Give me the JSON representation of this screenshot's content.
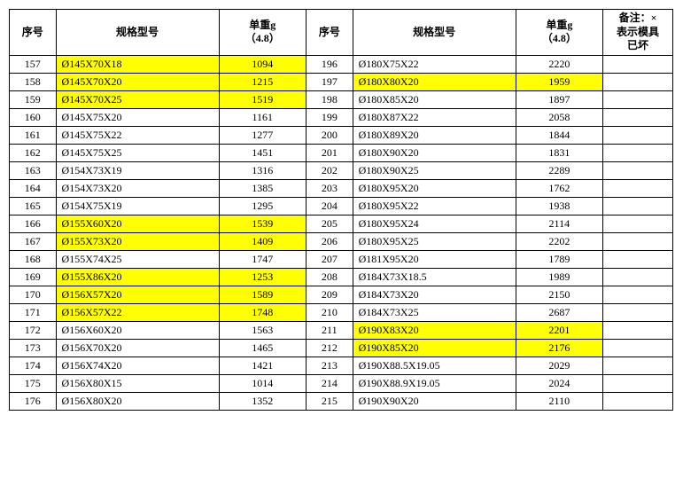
{
  "headers": {
    "seq": "序号",
    "spec": "规格型号",
    "weight_l1": "单重g",
    "weight_l2": "（4.8）",
    "note_l1": "备注：×",
    "note_l2": "表示模具",
    "note_l3": "已坏"
  },
  "left": [
    {
      "seq": "157",
      "spec": "Ø145X70X18",
      "weight": "1094",
      "hl": true
    },
    {
      "seq": "158",
      "spec": "Ø145X70X20",
      "weight": "1215",
      "hl": true
    },
    {
      "seq": "159",
      "spec": "Ø145X70X25",
      "weight": "1519",
      "hl": true
    },
    {
      "seq": "160",
      "spec": "Ø145X75X20",
      "weight": "1161",
      "hl": false
    },
    {
      "seq": "161",
      "spec": "Ø145X75X22",
      "weight": "1277",
      "hl": false
    },
    {
      "seq": "162",
      "spec": "Ø145X75X25",
      "weight": "1451",
      "hl": false
    },
    {
      "seq": "163",
      "spec": "Ø154X73X19",
      "weight": "1316",
      "hl": false
    },
    {
      "seq": "164",
      "spec": "Ø154X73X20",
      "weight": "1385",
      "hl": false
    },
    {
      "seq": "165",
      "spec": "Ø154X75X19",
      "weight": "1295",
      "hl": false
    },
    {
      "seq": "166",
      "spec": "Ø155X60X20",
      "weight": "1539",
      "hl": true
    },
    {
      "seq": "167",
      "spec": "Ø155X73X20",
      "weight": "1409",
      "hl": true
    },
    {
      "seq": "168",
      "spec": "Ø155X74X25",
      "weight": "1747",
      "hl": false
    },
    {
      "seq": "169",
      "spec": "Ø155X86X20",
      "weight": "1253",
      "hl": true
    },
    {
      "seq": "170",
      "spec": "Ø156X57X20",
      "weight": "1589",
      "hl": true
    },
    {
      "seq": "171",
      "spec": "Ø156X57X22",
      "weight": "1748",
      "hl": true
    },
    {
      "seq": "172",
      "spec": "Ø156X60X20",
      "weight": "1563",
      "hl": false
    },
    {
      "seq": "173",
      "spec": "Ø156X70X20",
      "weight": "1465",
      "hl": false
    },
    {
      "seq": "174",
      "spec": "Ø156X74X20",
      "weight": "1421",
      "hl": false
    },
    {
      "seq": "175",
      "spec": "Ø156X80X15",
      "weight": "1014",
      "hl": false
    },
    {
      "seq": "176",
      "spec": "Ø156X80X20",
      "weight": "1352",
      "hl": false
    }
  ],
  "right": [
    {
      "seq": "196",
      "spec": "Ø180X75X22",
      "weight": "2220",
      "hl": false
    },
    {
      "seq": "197",
      "spec": "Ø180X80X20",
      "weight": "1959",
      "hl": true
    },
    {
      "seq": "198",
      "spec": "Ø180X85X20",
      "weight": "1897",
      "hl": false
    },
    {
      "seq": "199",
      "spec": "Ø180X87X22",
      "weight": "2058",
      "hl": false
    },
    {
      "seq": "200",
      "spec": "Ø180X89X20",
      "weight": "1844",
      "hl": false
    },
    {
      "seq": "201",
      "spec": "Ø180X90X20",
      "weight": "1831",
      "hl": false
    },
    {
      "seq": "202",
      "spec": "Ø180X90X25",
      "weight": "2289",
      "hl": false
    },
    {
      "seq": "203",
      "spec": "Ø180X95X20",
      "weight": "1762",
      "hl": false
    },
    {
      "seq": "204",
      "spec": "Ø180X95X22",
      "weight": "1938",
      "hl": false
    },
    {
      "seq": "205",
      "spec": "Ø180X95X24",
      "weight": "2114",
      "hl": false
    },
    {
      "seq": "206",
      "spec": "Ø180X95X25",
      "weight": "2202",
      "hl": false
    },
    {
      "seq": "207",
      "spec": "Ø181X95X20",
      "weight": "1789",
      "hl": false
    },
    {
      "seq": "208",
      "spec": "Ø184X73X18.5",
      "weight": "1989",
      "hl": false
    },
    {
      "seq": "209",
      "spec": "Ø184X73X20",
      "weight": "2150",
      "hl": false
    },
    {
      "seq": "210",
      "spec": "Ø184X73X25",
      "weight": "2687",
      "hl": false
    },
    {
      "seq": "211",
      "spec": "Ø190X83X20",
      "weight": "2201",
      "hl": true
    },
    {
      "seq": "212",
      "spec": "Ø190X85X20",
      "weight": "2176",
      "hl": true
    },
    {
      "seq": "213",
      "spec": "Ø190X88.5X19.05",
      "weight": "2029",
      "hl": false
    },
    {
      "seq": "214",
      "spec": "Ø190X88.9X19.05",
      "weight": "2024",
      "hl": false
    },
    {
      "seq": "215",
      "spec": "Ø190X90X20",
      "weight": "2110",
      "hl": false
    }
  ]
}
